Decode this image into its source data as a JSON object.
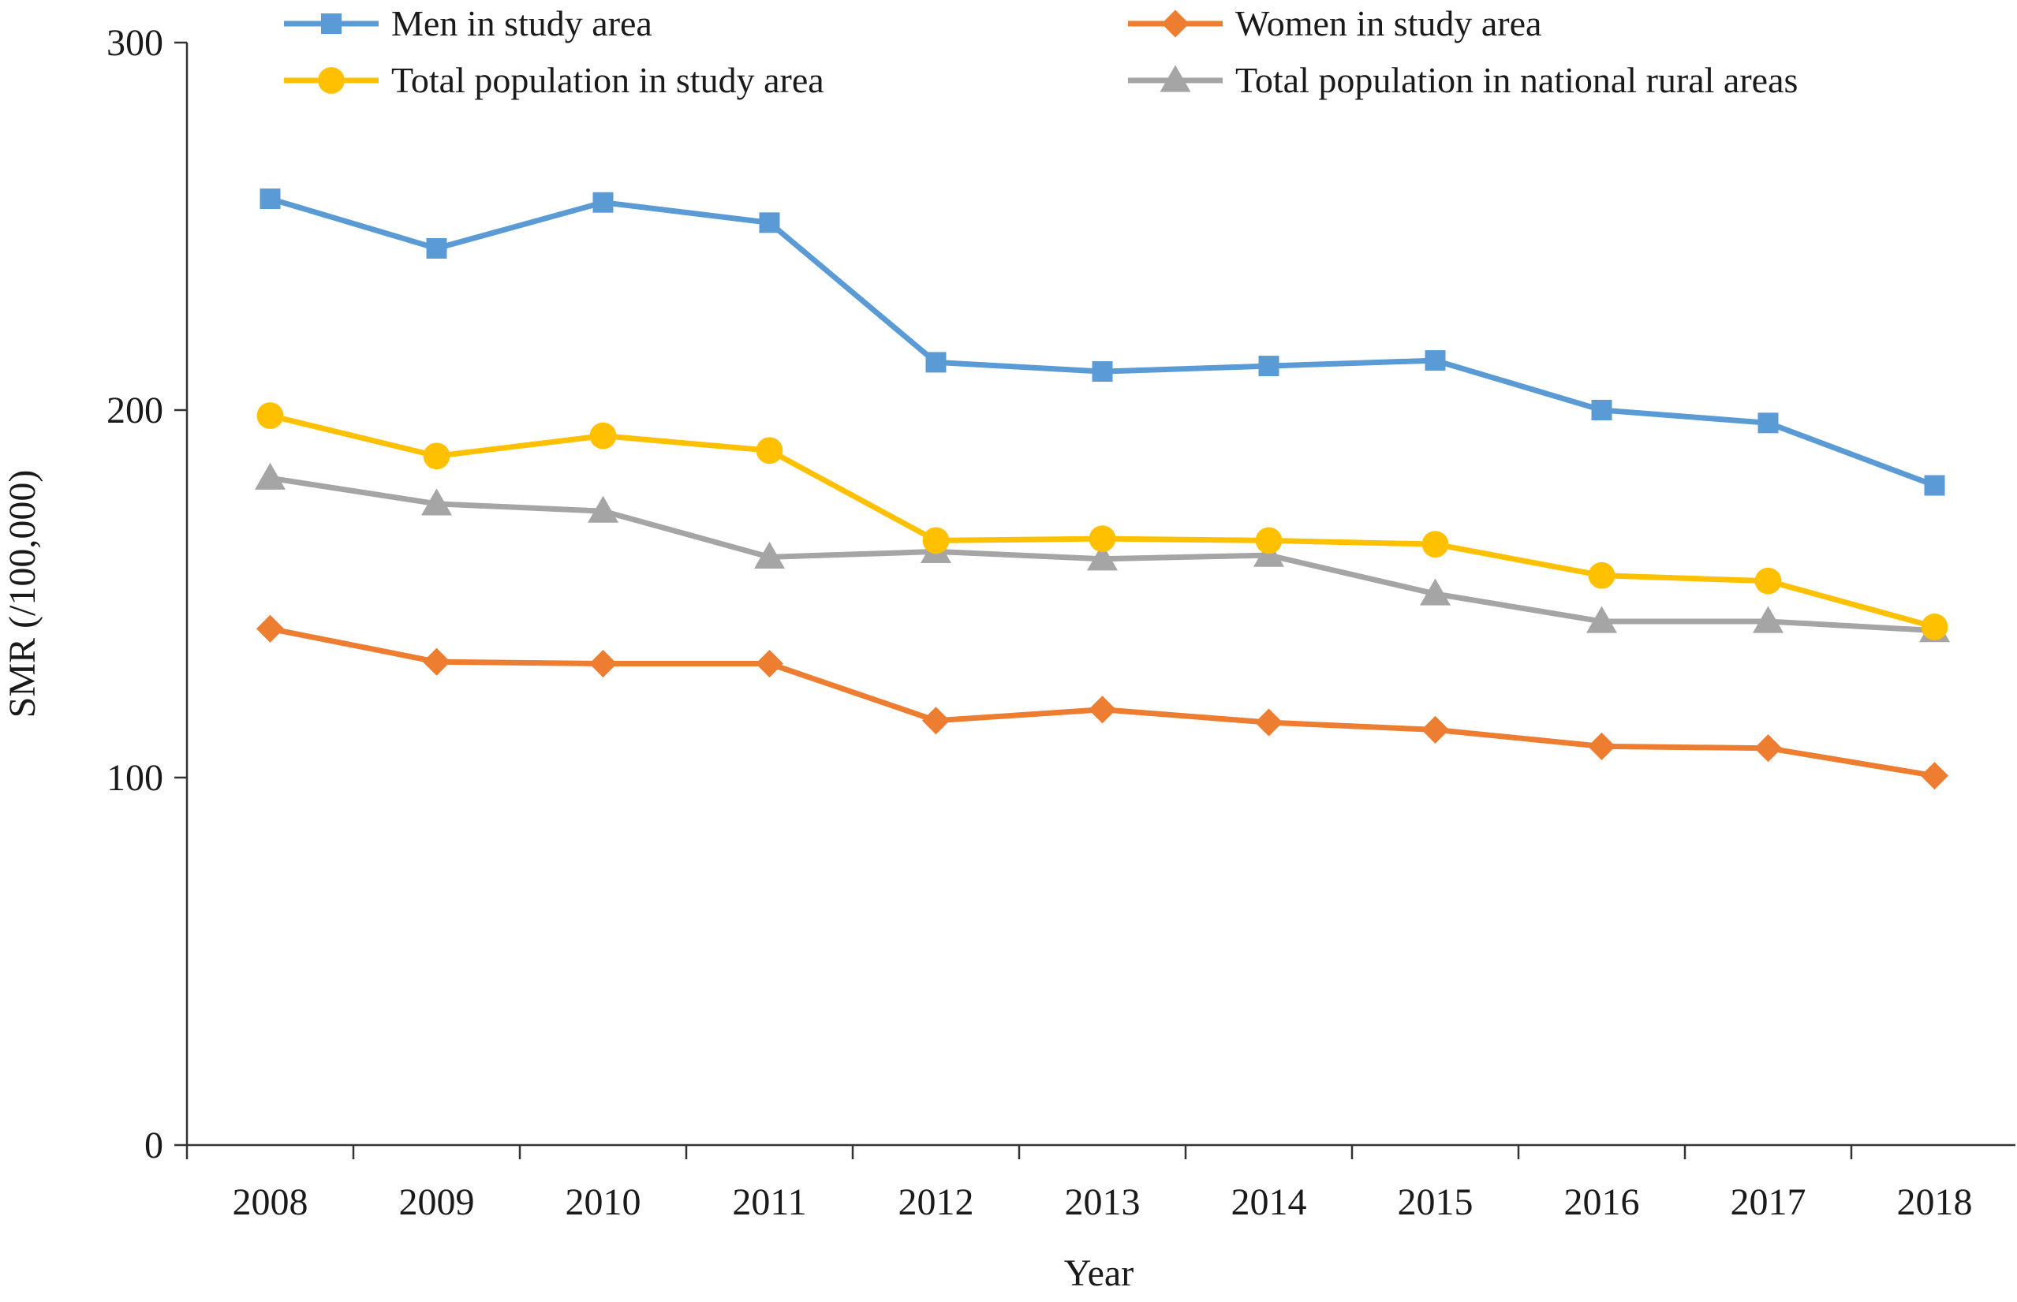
{
  "chart_data": {
    "type": "line",
    "title": "",
    "xlabel": "Year",
    "ylabel": "SMR (/100,000)",
    "categories": [
      "2008",
      "2009",
      "2010",
      "2011",
      "2012",
      "2013",
      "2014",
      "2015",
      "2016",
      "2017",
      "2018"
    ],
    "ylim": [
      0,
      300
    ],
    "yticks": [
      0,
      100,
      200,
      300
    ],
    "grid": false,
    "legend_position": "top",
    "series": [
      {
        "name": "Men in study area",
        "color": "#5b9bd5",
        "marker": "square",
        "values": [
          257.5,
          244,
          256.5,
          251,
          213,
          210.5,
          212,
          213.5,
          200,
          196.5,
          179.5
        ]
      },
      {
        "name": "Women in study area",
        "color": "#ed7d31",
        "marker": "diamond",
        "values": [
          140.5,
          131.5,
          131,
          131,
          115.5,
          118.5,
          115,
          113,
          108.5,
          108,
          100.5
        ]
      },
      {
        "name": "Total population in study area",
        "color": "#ffc000",
        "marker": "circle",
        "values": [
          198.5,
          187.5,
          193,
          189,
          164.5,
          165,
          164.5,
          163.5,
          155,
          153.5,
          141
        ]
      },
      {
        "name": "Total population in national rural areas",
        "color": "#a5a5a5",
        "marker": "triangle",
        "values": [
          181.5,
          174.5,
          172.5,
          160,
          161.5,
          159.5,
          160.5,
          150,
          142.5,
          142.5,
          140
        ]
      }
    ]
  }
}
